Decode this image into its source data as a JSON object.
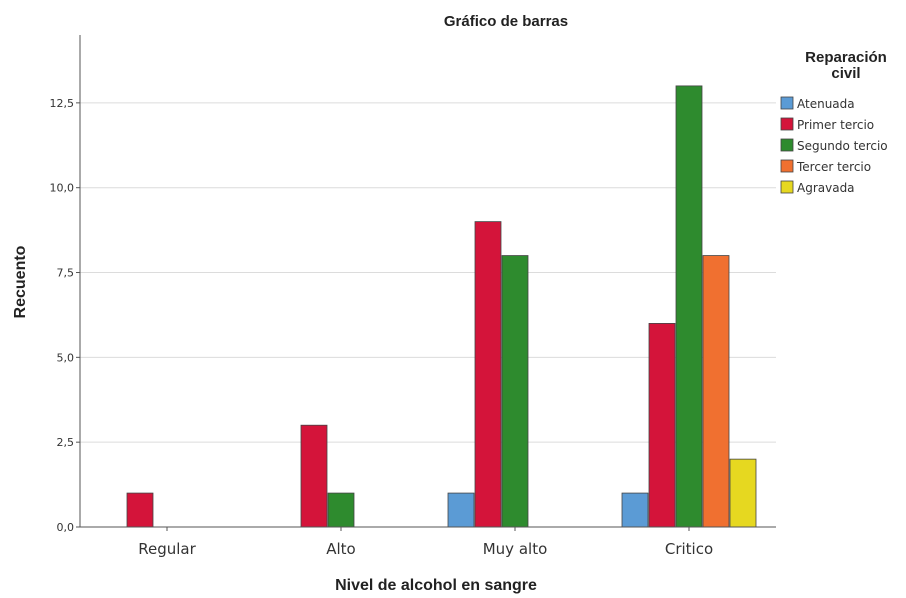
{
  "chart_data": {
    "type": "bar",
    "title": "Gráfico de barras",
    "xlabel": "Nivel de alcohol en sangre",
    "ylabel": "Recuento",
    "categories": [
      "Regular",
      "Alto",
      "Muy alto",
      "Critico"
    ],
    "ylim": [
      0,
      14.5
    ],
    "yticks": [
      "0,0",
      "2,5",
      "5,0",
      "7,5",
      "10,0",
      "12,5"
    ],
    "ytick_values": [
      0,
      2.5,
      5,
      7.5,
      10,
      12.5
    ],
    "grid": true,
    "legend": {
      "title": "Reparación civil",
      "title_lines": [
        "Reparación",
        "civil"
      ],
      "placement": "right"
    },
    "series": [
      {
        "name": "Atenuada",
        "color": "#5b9bd5",
        "values": [
          0,
          0,
          1,
          1
        ]
      },
      {
        "name": "Primer tercio",
        "color": "#d4143a",
        "values": [
          1,
          3,
          9,
          6
        ]
      },
      {
        "name": "Segundo tercio",
        "color": "#2e8b2e",
        "values": [
          0,
          1,
          8,
          13
        ]
      },
      {
        "name": "Tercer tercio",
        "color": "#f07030",
        "values": [
          0,
          0,
          0,
          8
        ]
      },
      {
        "name": "Agravada",
        "color": "#e6d820",
        "values": [
          0,
          0,
          0,
          2
        ]
      }
    ]
  }
}
